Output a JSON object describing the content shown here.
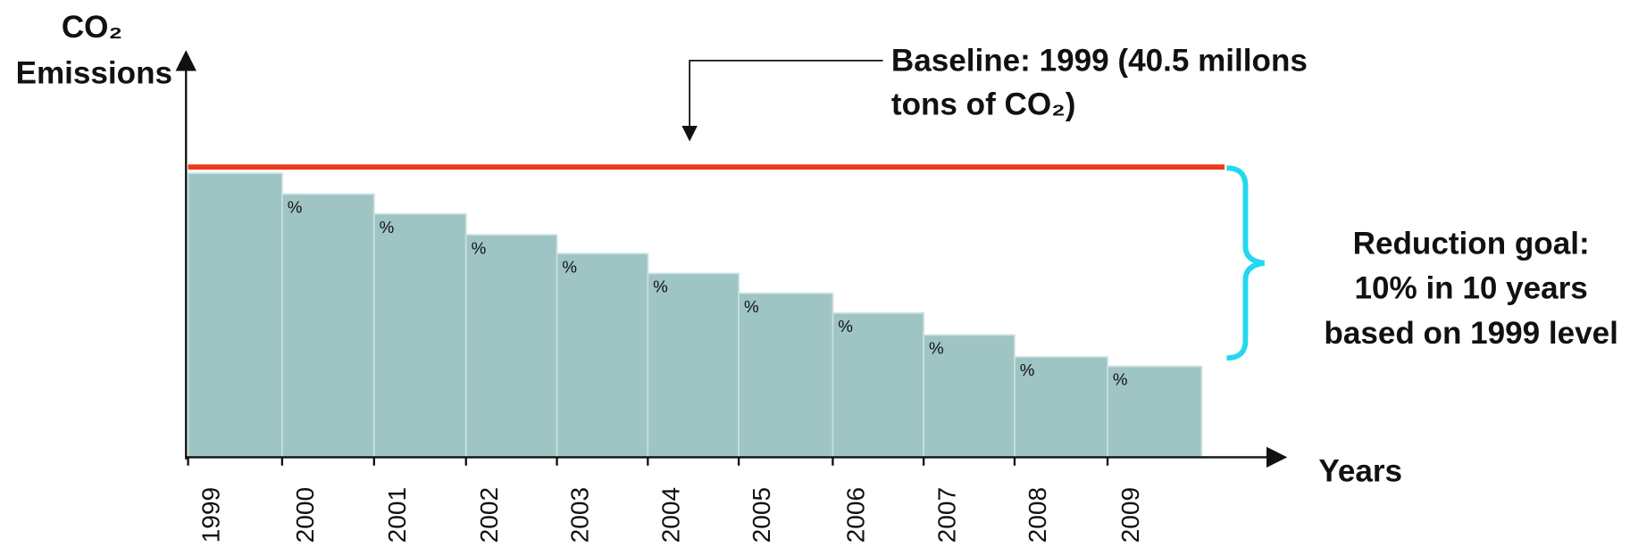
{
  "axes": {
    "y_label": [
      "CO₂",
      "Emissions"
    ],
    "x_label": "Years"
  },
  "years": [
    "1999",
    "2000",
    "2001",
    "2002",
    "2003",
    "2004",
    "2005",
    "2006",
    "2007",
    "2008",
    "2009"
  ],
  "step_labels": [
    "%",
    "%",
    "%",
    "%",
    "%",
    "%",
    "%",
    "%",
    "%",
    "%"
  ],
  "baseline": [
    "Baseline:  1999 (40.5 millons",
    "tons of CO₂)"
  ],
  "goal": [
    "Reduction goal:",
    "10% in 10 years",
    "based on 1999 level"
  ]
}
